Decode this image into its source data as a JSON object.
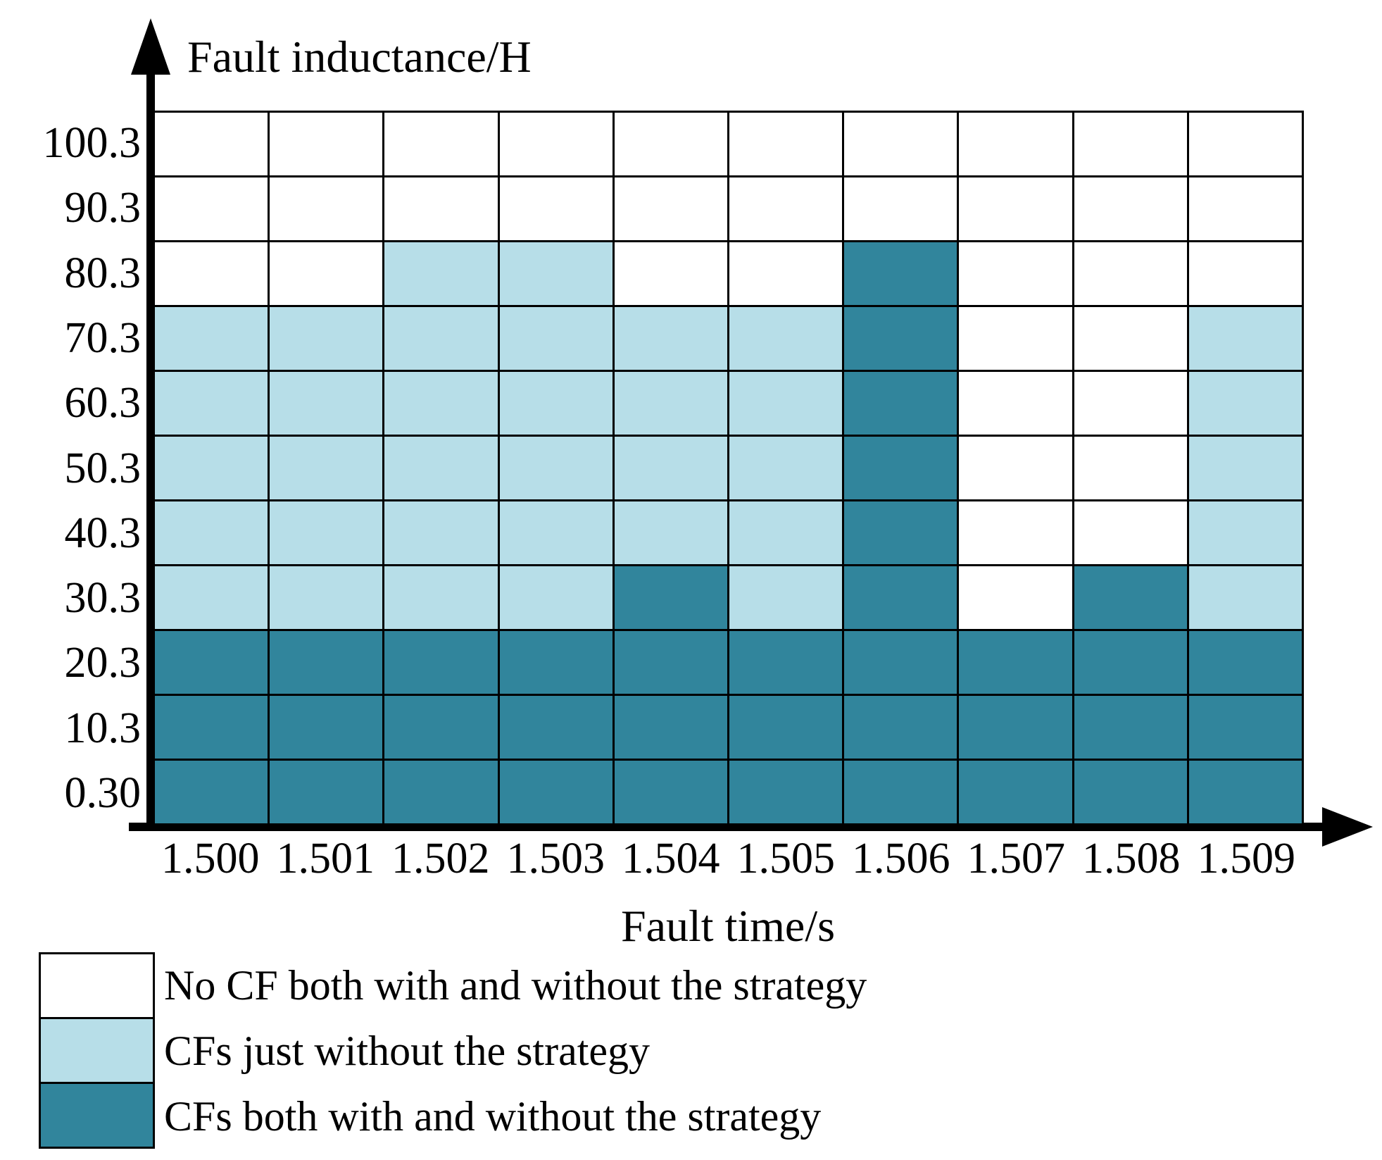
{
  "chart_data": {
    "type": "heatmap",
    "x_label": "Fault time/s",
    "y_label": "Fault inductance/H",
    "x_ticks": [
      "1.500",
      "1.501",
      "1.502",
      "1.503",
      "1.504",
      "1.505",
      "1.506",
      "1.507",
      "1.508",
      "1.509"
    ],
    "y_ticks_top_to_bottom": [
      "100.3",
      "90.3",
      "80.3",
      "70.3",
      "60.3",
      "50.3",
      "40.3",
      "30.3",
      "20.3",
      "10.3",
      "0.30"
    ],
    "cell_codes_top_to_bottom": [
      "WWWWWWWWWW",
      "WWWWWWWWWW",
      "WWLLWWDWWW",
      "LLLLLLDWWL",
      "LLLLLLDWWL",
      "LLLLLLDWWL",
      "LLLLLLDWWL",
      "LLLLDLDWDL",
      "DDDDDDDDDD",
      "DDDDDDDDDD",
      "DDDDDDDDDD"
    ],
    "colors": {
      "W": "#ffffff",
      "L": "#b7dee8",
      "D": "#31859c"
    },
    "grid_line_color": "#000000",
    "legend_position": "bottom-left",
    "legend": [
      {
        "code": "W",
        "color": "#ffffff",
        "label": "No CF both with and without the strategy"
      },
      {
        "code": "L",
        "color": "#b7dee8",
        "label": "CFs just without the strategy"
      },
      {
        "code": "D",
        "color": "#31859c",
        "label": "CFs both with and without the strategy"
      }
    ]
  }
}
